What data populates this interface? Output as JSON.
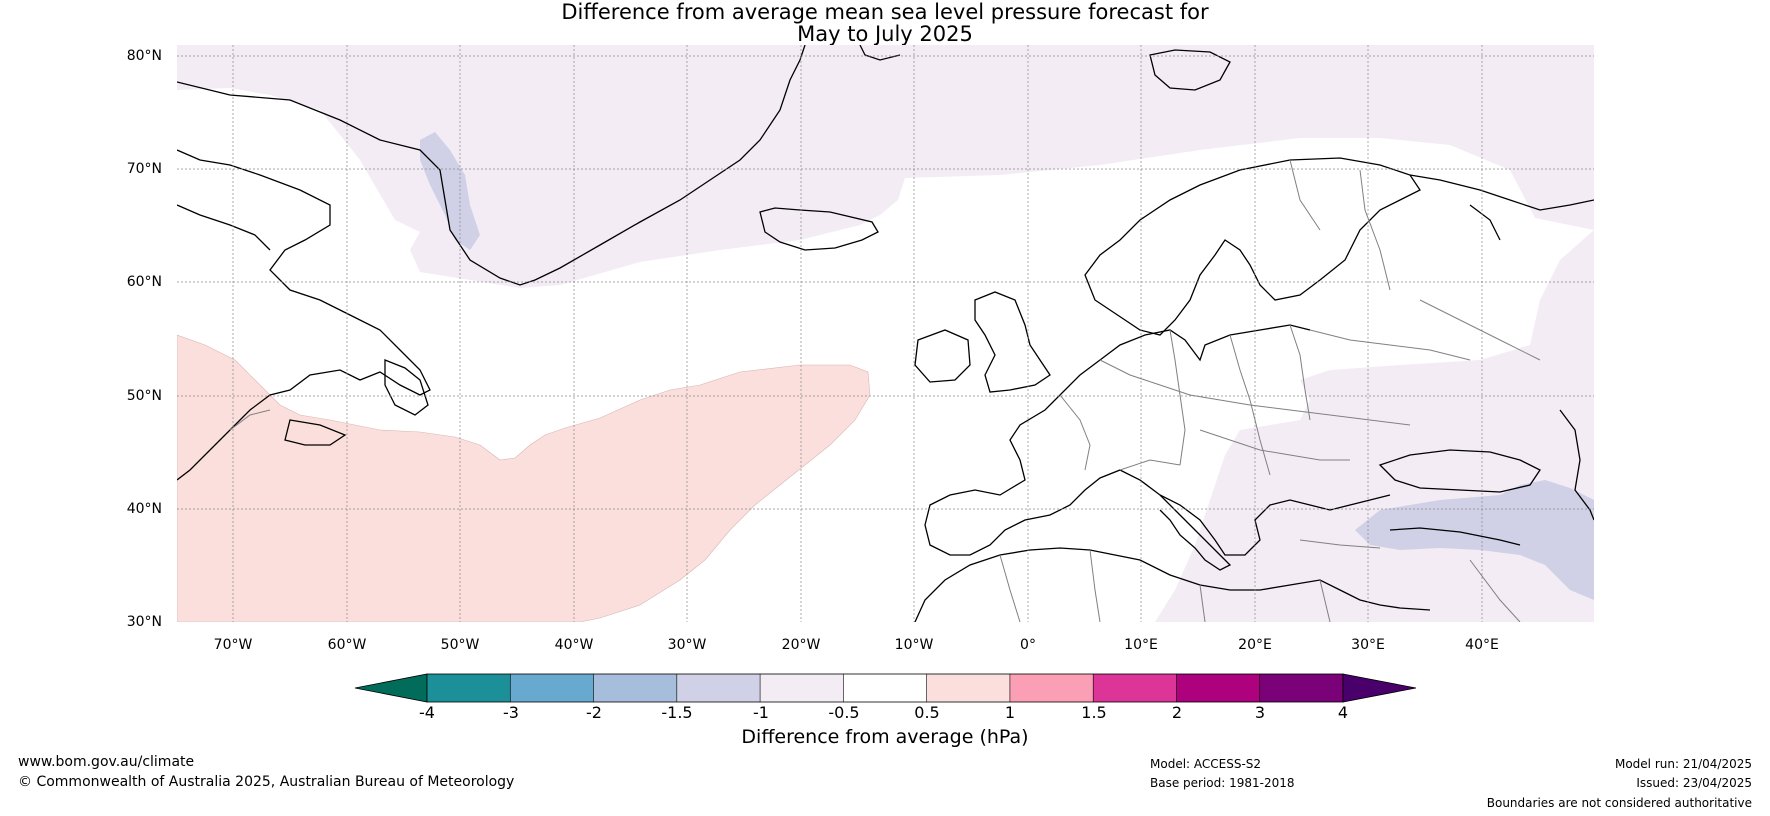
{
  "title": {
    "line1": "Difference from average mean sea level pressure forecast for",
    "line2": "May to July 2025"
  },
  "map": {
    "lat_labels": [
      "80°N",
      "70°N",
      "60°N",
      "50°N",
      "40°N",
      "30°N"
    ],
    "lon_labels": [
      "70°W",
      "60°W",
      "50°W",
      "40°W",
      "30°W",
      "20°W",
      "10°W",
      "0°",
      "10°E",
      "20°E",
      "30°E",
      "40°E"
    ],
    "colors": {
      "ocean_neutral": "#ffffff",
      "light_lilac_-1_-0.5": "#f3ecf5",
      "lavender_-1.5_-1": "#d0d1e6",
      "pink_0.5_1": "#fbdfdc",
      "coast": "#000000",
      "borders": "#808080"
    }
  },
  "colorbar": {
    "title": "Difference from average (hPa)",
    "tick_labels": [
      "-4",
      "-3",
      "-2",
      "-1.5",
      "-1",
      "-0.5",
      "0.5",
      "1",
      "1.5",
      "2",
      "3",
      "4"
    ],
    "low_extend_color": "#016c59",
    "high_extend_color": "#49006a",
    "segment_colors": [
      "#1c9099",
      "#67a9cf",
      "#a6bddb",
      "#d0d1e6",
      "#f3ecf5",
      "#ffffff",
      "#fbdfdc",
      "#fa9fb5",
      "#dd3497",
      "#ae017e",
      "#7a0177"
    ]
  },
  "footer": {
    "website": "www.bom.gov.au/climate",
    "copyright": "© Commonwealth of Australia 2025, Australian Bureau of Meteorology",
    "model": "Model: ACCESS-S2",
    "base_period": "Base period: 1981-2018",
    "model_run": "Model run: 21/04/2025",
    "issued": "Issued: 23/04/2025",
    "disclaimer": "Boundaries are not considered authoritative"
  }
}
